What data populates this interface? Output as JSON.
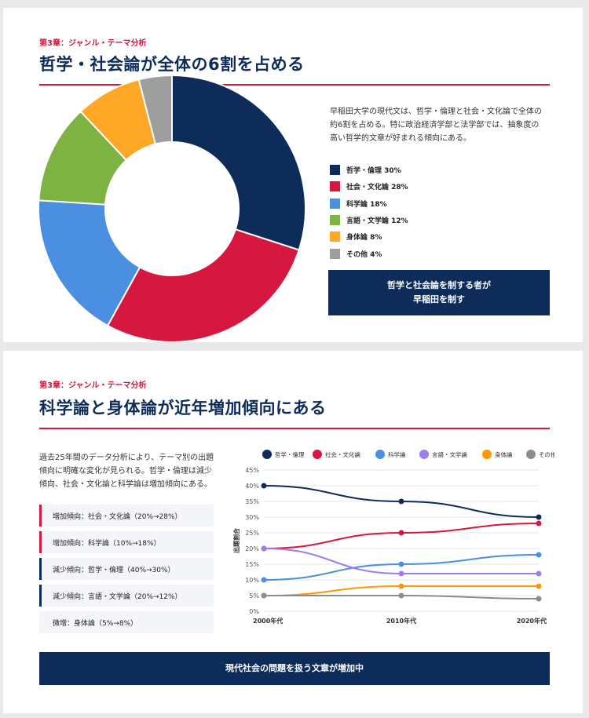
{
  "slide1": {
    "chapter": "第3章：ジャンル・テーマ分析",
    "title": "哲学・社会論が全体の6割を占める",
    "description_lines": [
      "早稲田大学の現代文は、哲学・倫理と社会・文化論で全体の",
      "約6割を占める。特に政治経済学部と法学部では、抽象度の",
      "高い哲学的文章が好まれる傾向にある。"
    ],
    "legend": [
      {
        "label": "哲学・倫理 30%",
        "color": "#0d2c5a"
      },
      {
        "label": "社会・文化論 28%",
        "color": "#d6173f"
      },
      {
        "label": "科学論 18%",
        "color": "#4a8fe0"
      },
      {
        "label": "言語・文学論 12%",
        "color": "#7cb342"
      },
      {
        "label": "身体論 8%",
        "color": "#ffa726"
      },
      {
        "label": "その他 4%",
        "color": "#9e9e9e"
      }
    ],
    "banner_lines": [
      "哲学と社会論を制する者が",
      "早稲田を制す"
    ]
  },
  "slide2": {
    "chapter": "第3章：ジャンル・テーマ分析",
    "title": "科学論と身体論が近年増加傾向にある",
    "description_lines": [
      "過去25年間のデータ分析により、テーマ別の出題",
      "傾向に明確な変化が見られる。哲学・倫理は減少",
      "傾向、社会・文化論と科学論は増加傾向にある。"
    ],
    "trends": [
      {
        "text": "増加傾向：社会・文化論（20%→28%）",
        "kind": "up"
      },
      {
        "text": "増加傾向：科学論（10%→18%）",
        "kind": "up"
      },
      {
        "text": "減少傾向：哲学・倫理（40%→30%）",
        "kind": "down"
      },
      {
        "text": "減少傾向：言語・文学論（20%→12%）",
        "kind": "down"
      },
      {
        "text": "微増：身体論（5%→8%）",
        "kind": "none"
      }
    ],
    "banner": "現代社会の問題を扱う文章が増加中"
  },
  "chart_data": [
    {
      "type": "pie",
      "donut": true,
      "categories": [
        "哲学・倫理",
        "社会・文化論",
        "科学論",
        "言語・文学論",
        "身体論",
        "その他"
      ],
      "values": [
        30,
        28,
        18,
        12,
        8,
        4
      ],
      "colors": [
        "#0d2c5a",
        "#d6173f",
        "#4a8fe0",
        "#7cb342",
        "#ffa726",
        "#9e9e9e"
      ]
    },
    {
      "type": "line",
      "x": [
        "2000年代",
        "2010年代",
        "2020年代"
      ],
      "ylabel": "出題割合",
      "ylim": [
        0,
        45
      ],
      "yticks": [
        "0%",
        "5%",
        "10%",
        "15%",
        "20%",
        "25%",
        "30%",
        "35%",
        "40%",
        "45%"
      ],
      "grid": true,
      "legend_position": "top",
      "series": [
        {
          "name": "哲学・倫理",
          "values": [
            40,
            35,
            30
          ],
          "color": "#0d2c5a"
        },
        {
          "name": "社会・文化論",
          "values": [
            20,
            25,
            28
          ],
          "color": "#d6173f"
        },
        {
          "name": "科学論",
          "values": [
            10,
            15,
            18
          ],
          "color": "#4a8fe0"
        },
        {
          "name": "言語・文学論",
          "values": [
            20,
            12,
            12
          ],
          "color": "#9c7ef0"
        },
        {
          "name": "身体論",
          "values": [
            5,
            8,
            8
          ],
          "color": "#ff9800"
        },
        {
          "name": "その他",
          "values": [
            5,
            5,
            4
          ],
          "color": "#8d8d8d"
        }
      ]
    }
  ]
}
